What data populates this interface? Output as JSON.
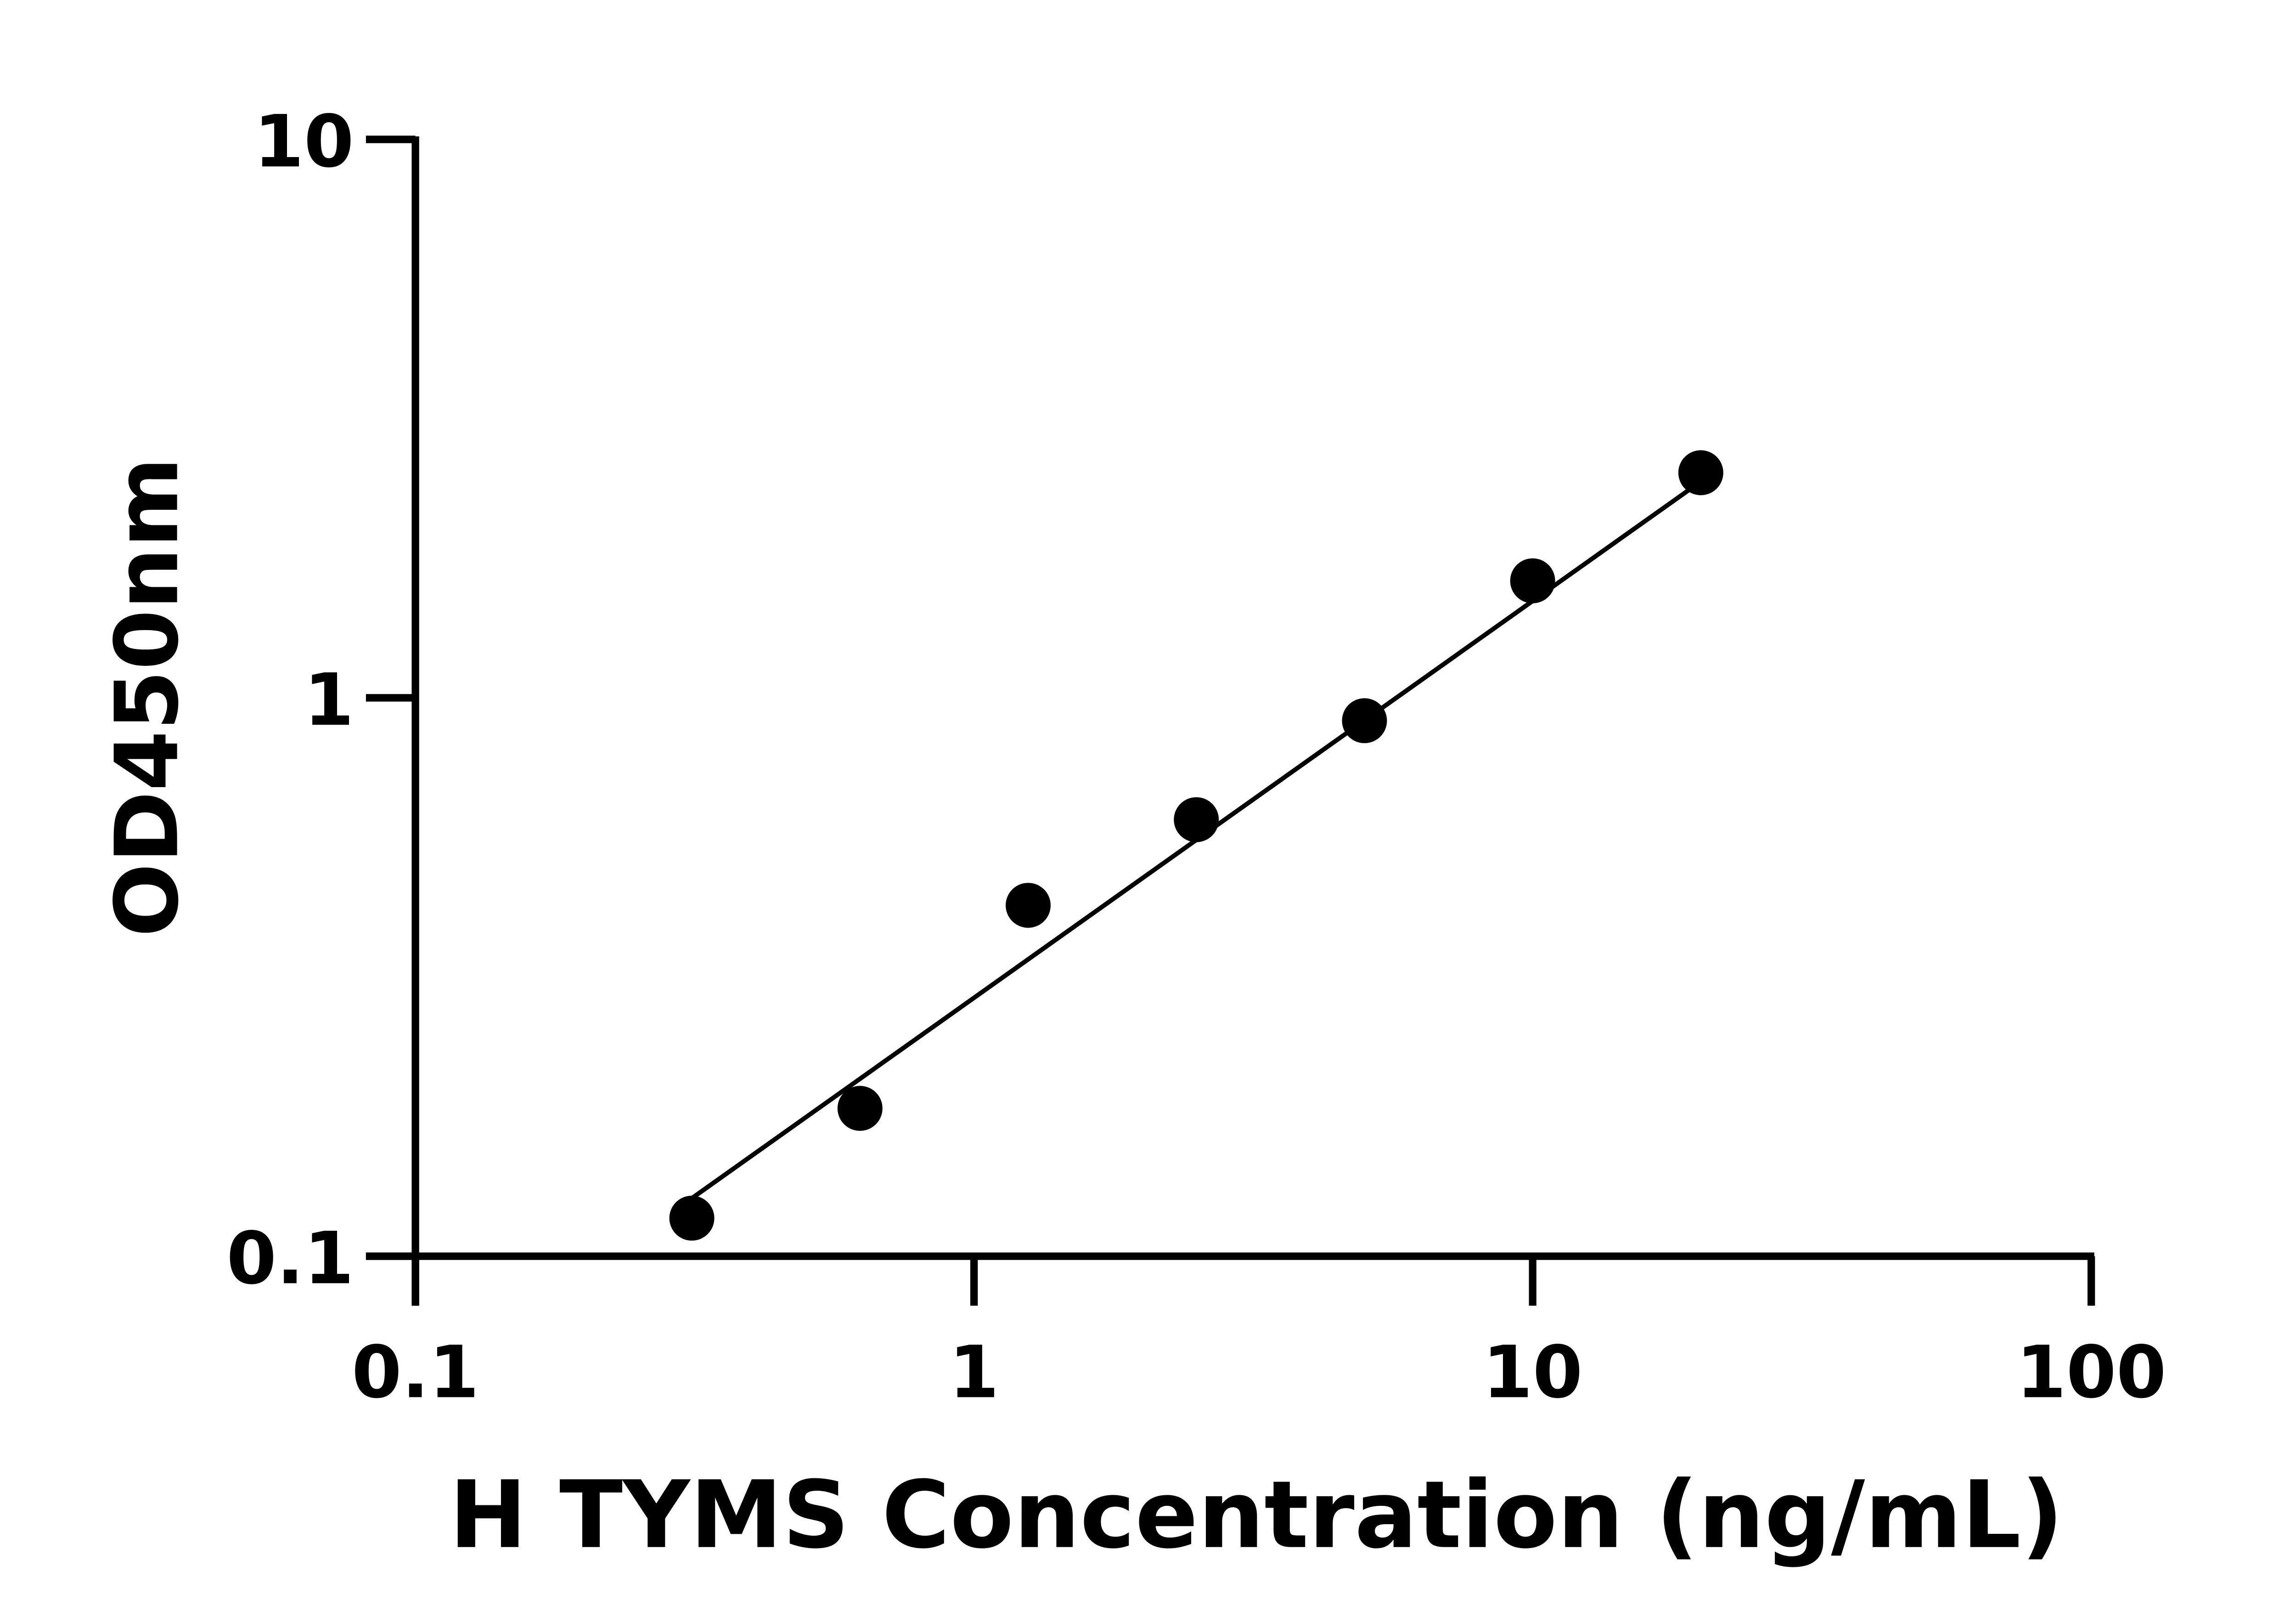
{
  "chart_data": {
    "type": "scatter",
    "title": "",
    "xlabel": "H TYMS Concentration (ng/mL)",
    "ylabel": "OD450nm",
    "x_scale": "log",
    "y_scale": "log",
    "xlim": [
      0.1,
      100
    ],
    "ylim": [
      0.1,
      10
    ],
    "x_ticks": [
      "0.1",
      "1",
      "10",
      "100"
    ],
    "y_ticks": [
      "0.1",
      "1",
      "10"
    ],
    "grid": false,
    "legend": "none",
    "points": {
      "x": [
        0.3125,
        0.625,
        1.25,
        2.5,
        5,
        10,
        20
      ],
      "y": [
        0.117,
        0.184,
        0.425,
        0.605,
        0.91,
        1.62,
        2.53
      ]
    },
    "fit_line": {
      "x": [
        0.3125,
        20
      ],
      "y": [
        0.127,
        2.44
      ]
    },
    "color": "#000000"
  }
}
